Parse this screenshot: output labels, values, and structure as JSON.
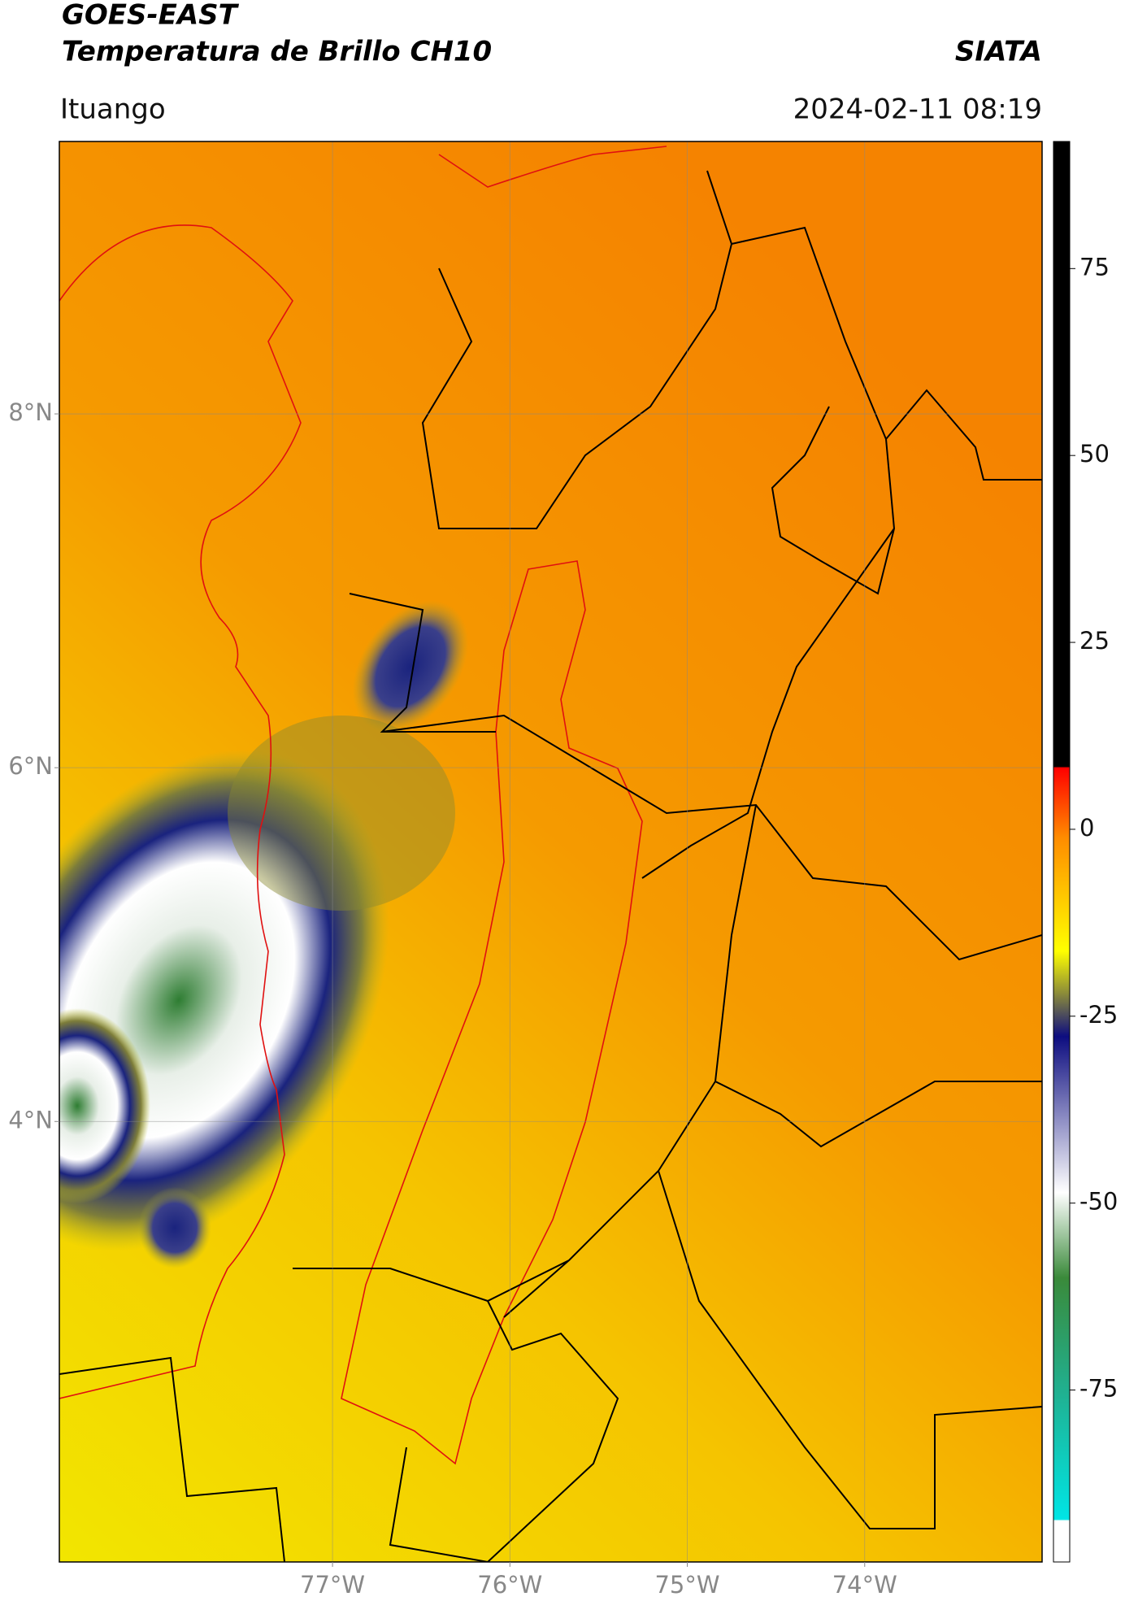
{
  "header": {
    "title": "GOES-EAST",
    "subtitle": "Temperatura de Brillo CH10",
    "source": "SIATA",
    "location": "Ituango",
    "timestamp": "2024-02-11 08:19"
  },
  "chart_data": {
    "type": "map",
    "xlim": [
      -78.54,
      -73.0
    ],
    "xticks": [
      {
        "value": -77,
        "label": "77°W"
      },
      {
        "value": -76,
        "label": "76°W"
      },
      {
        "value": -75,
        "label": "75°W"
      },
      {
        "value": -74,
        "label": "74°W"
      }
    ],
    "ylim": [
      1.51,
      9.54
    ],
    "yticks": [
      {
        "value": 4,
        "label": "4°N"
      },
      {
        "value": 6,
        "label": "6°N"
      },
      {
        "value": 8,
        "label": "8°N"
      }
    ],
    "grid": true,
    "colorbar": {
      "lim": [
        -98,
        92
      ],
      "ticks": [
        -75,
        -50,
        -25,
        0,
        25,
        50,
        75
      ]
    }
  }
}
